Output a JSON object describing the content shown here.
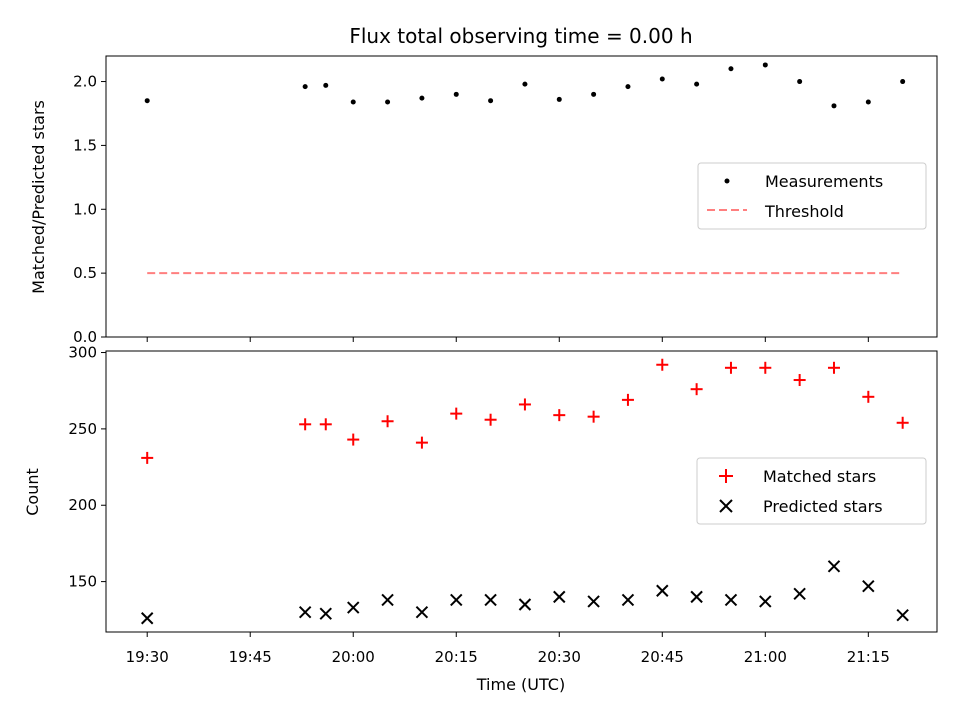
{
  "chart_data": {
    "type": "scatter",
    "title": "Flux total observing time = 0.00 h",
    "xlabel": "Time (UTC)",
    "x_tick_labels": [
      "19:30",
      "19:45",
      "20:00",
      "20:15",
      "20:30",
      "20:45",
      "21:00",
      "21:15"
    ],
    "x_minor_ticks": [
      "19:30",
      "19:45",
      "20:00",
      "20:15",
      "20:30",
      "20:45",
      "21:00",
      "21:15"
    ],
    "xlim": [
      "19:24",
      "21:25"
    ],
    "times": [
      "19:30",
      "19:53",
      "19:56",
      "20:00",
      "20:05",
      "20:10",
      "20:15",
      "20:20",
      "20:25",
      "20:30",
      "20:35",
      "20:40",
      "20:45",
      "20:50",
      "20:55",
      "21:00",
      "21:05",
      "21:10",
      "21:15",
      "21:20"
    ],
    "panels": [
      {
        "ylabel": "Matched/Predicted stars",
        "ylim": [
          0,
          2.2
        ],
        "y_ticks": [
          0.0,
          0.5,
          1.0,
          1.5,
          2.0
        ],
        "y_tick_labels": [
          "0.0",
          "0.5",
          "1.0",
          "1.5",
          "2.0"
        ],
        "legend_position": "center-right",
        "series": [
          {
            "name": "Measurements",
            "marker": "dot",
            "color": "#000000",
            "values": [
              1.85,
              1.96,
              1.97,
              1.84,
              1.84,
              1.87,
              1.9,
              1.85,
              1.98,
              1.86,
              1.9,
              1.96,
              2.02,
              1.98,
              2.1,
              2.13,
              2.0,
              1.81,
              1.84,
              2.0
            ]
          },
          {
            "name": "Threshold",
            "marker": "dashed-line",
            "color": "#ff7f7f",
            "x_range": [
              "19:30",
              "21:20"
            ],
            "values": [
              0.5,
              0.5
            ]
          }
        ]
      },
      {
        "ylabel": "Count",
        "ylim": [
          117,
          301
        ],
        "y_ticks": [
          150,
          200,
          250,
          300
        ],
        "y_tick_labels": [
          "150",
          "200",
          "250",
          "300"
        ],
        "legend_position": "center-right",
        "series": [
          {
            "name": "Matched stars",
            "marker": "plus",
            "color": "#ff0000",
            "values": [
              231,
              253,
              253,
              243,
              255,
              241,
              260,
              256,
              266,
              259,
              258,
              269,
              292,
              276,
              290,
              290,
              282,
              290,
              271,
              254
            ]
          },
          {
            "name": "Predicted stars",
            "marker": "x",
            "color": "#000000",
            "values": [
              126,
              130,
              129,
              133,
              138,
              130,
              138,
              138,
              135,
              140,
              137,
              138,
              144,
              140,
              138,
              137,
              142,
              160,
              147,
              128
            ]
          }
        ]
      }
    ]
  }
}
